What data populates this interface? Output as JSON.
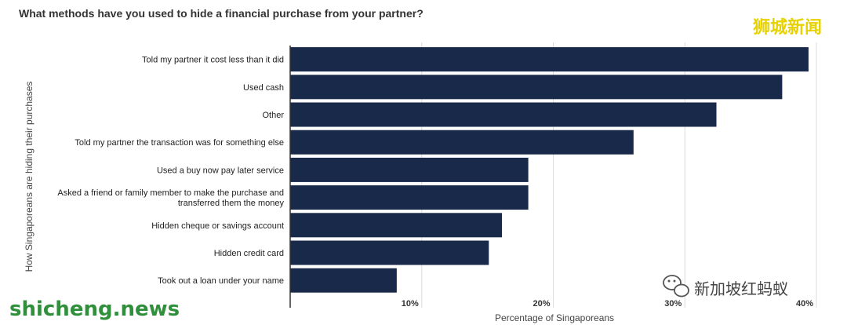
{
  "chart_data": {
    "type": "bar",
    "orientation": "horizontal",
    "title": "What methods have you used to hide a financial purchase from your partner?",
    "xlabel": "Percentage of Singaporeans",
    "ylabel": "How Singaporeans are hiding their purchases",
    "categories": [
      [
        "Told my partner it cost less than it did"
      ],
      [
        "Used cash"
      ],
      [
        "Other"
      ],
      [
        "Told my partner the transaction was for something else"
      ],
      [
        "Used a buy now pay later service"
      ],
      [
        "Asked a friend or family member to make the purchase and",
        "transferred them the money"
      ],
      [
        "Hidden cheque or savings account"
      ],
      [
        "Hidden credit card"
      ],
      [
        "Took out a loan under your name"
      ]
    ],
    "values": [
      39.4,
      37.4,
      32.4,
      26.1,
      18.1,
      18.1,
      16.1,
      15.1,
      8.1
    ],
    "xlim": [
      0,
      40
    ],
    "ticks": [
      10,
      20,
      30,
      40
    ],
    "tick_labels": [
      "10%",
      "20%",
      "30%",
      "40%"
    ],
    "bar_color": "#19294a",
    "grid": true
  },
  "watermarks": {
    "top_right": "狮城新闻",
    "bottom_left": "shicheng.news",
    "bottom_right": "新加坡红蚂蚁",
    "bottom_right_icon": "wechat-icon"
  }
}
